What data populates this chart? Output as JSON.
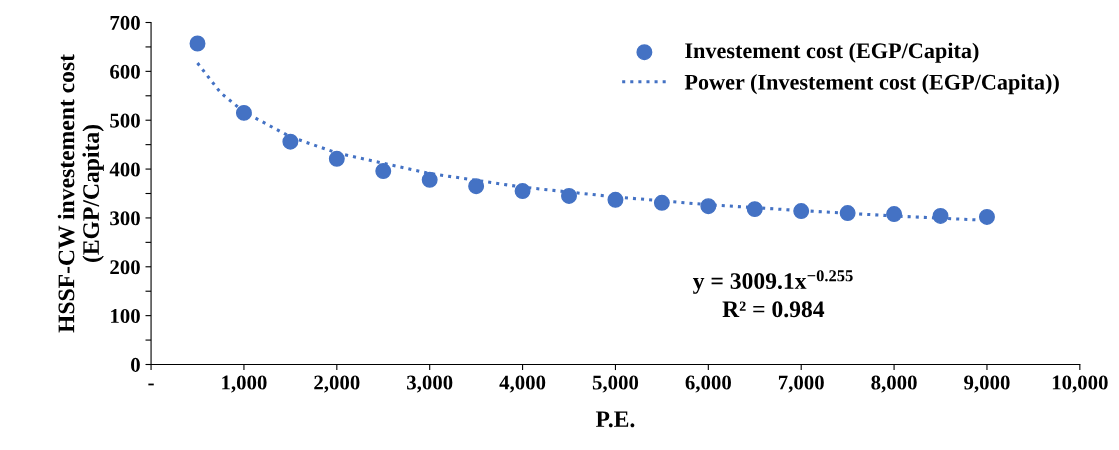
{
  "chart_data": {
    "type": "scatter",
    "xlabel": "P.E.",
    "ylabel": "HSSF-CW investement cost\n(EGP/Capita)",
    "x": [
      500,
      1000,
      1500,
      2000,
      2500,
      3000,
      3500,
      4000,
      4500,
      5000,
      5500,
      6000,
      6500,
      7000,
      7500,
      8000,
      8500,
      9000
    ],
    "series": [
      {
        "name": "Investement cost (EGP/Capita)",
        "color": "#4472c4",
        "marker": "circle",
        "values": [
          657,
          515,
          456,
          421,
          396,
          378,
          365,
          355,
          345,
          337,
          331,
          324,
          318,
          314,
          310,
          308,
          304,
          302
        ]
      },
      {
        "name": "Power (Investement cost (EGP/Capita))",
        "type": "line",
        "color": "#4472c4",
        "marker": "none",
        "line_style": "dotted",
        "x": [
          500,
          750,
          1000,
          1500,
          2000,
          3000,
          4000,
          5000,
          6000,
          7000,
          8000,
          9000
        ],
        "values": [
          617,
          556,
          517,
          466,
          433,
          391,
          363,
          343,
          327,
          315,
          304,
          295
        ]
      }
    ],
    "xlim": [
      0,
      10000
    ],
    "xticks": [
      {
        "value": 0,
        "label": "-"
      },
      {
        "value": 1000,
        "label": "1,000"
      },
      {
        "value": 2000,
        "label": "2,000"
      },
      {
        "value": 3000,
        "label": "3,000"
      },
      {
        "value": 4000,
        "label": "4,000"
      },
      {
        "value": 5000,
        "label": "5,000"
      },
      {
        "value": 6000,
        "label": "6,000"
      },
      {
        "value": 7000,
        "label": "7,000"
      },
      {
        "value": 8000,
        "label": "8,000"
      },
      {
        "value": 9000,
        "label": "9,000"
      },
      {
        "value": 10000,
        "label": "10,000"
      }
    ],
    "ylim": [
      0,
      700
    ],
    "yticks": [
      0,
      {
        "value": 50,
        "label": null
      },
      100,
      {
        "value": 150,
        "label": null
      },
      200,
      {
        "value": 250,
        "label": null
      },
      300,
      {
        "value": 350,
        "label": null
      },
      400,
      {
        "value": 450,
        "label": null
      },
      500,
      {
        "value": 550,
        "label": null
      },
      600,
      {
        "value": 650,
        "label": null
      },
      700
    ],
    "grid": false,
    "legend": "top right",
    "annotations": [
      "y = 3009.1x$^{−0.255}$\nR² = 0.984"
    ]
  }
}
